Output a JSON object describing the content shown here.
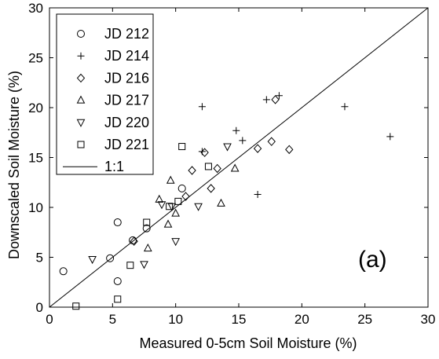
{
  "chart_data": {
    "type": "scatter",
    "title": "",
    "xlabel": "Measured 0-5cm Soil Moisture (%)",
    "ylabel": "Downscaled Soil Moisture (%)",
    "xlim": [
      0,
      30
    ],
    "ylim": [
      0,
      30
    ],
    "xticks": [
      "0",
      "5",
      "10",
      "15",
      "20",
      "25",
      "30"
    ],
    "yticks": [
      "0",
      "5",
      "10",
      "15",
      "20",
      "25",
      "30"
    ],
    "grid": false,
    "legend_position": "top-left",
    "annotation": "(a)",
    "series": [
      {
        "name": "JD 212",
        "marker": "circle",
        "points": [
          [
            1.1,
            3.6
          ],
          [
            4.8,
            4.9
          ],
          [
            5.4,
            2.6
          ],
          [
            5.4,
            8.5
          ],
          [
            6.6,
            6.7
          ],
          [
            7.7,
            7.9
          ],
          [
            10.5,
            11.9
          ]
        ]
      },
      {
        "name": "JD 214",
        "marker": "plus",
        "points": [
          [
            12.1,
            20.1
          ],
          [
            12.1,
            15.6
          ],
          [
            14.8,
            17.7
          ],
          [
            15.3,
            16.7
          ],
          [
            16.5,
            11.3
          ],
          [
            17.2,
            20.8
          ],
          [
            18.2,
            21.2
          ],
          [
            23.4,
            20.1
          ],
          [
            27.0,
            17.1
          ]
        ]
      },
      {
        "name": "JD 216",
        "marker": "diamond",
        "points": [
          [
            6.7,
            6.6
          ],
          [
            10.8,
            11.1
          ],
          [
            11.3,
            13.7
          ],
          [
            12.3,
            15.5
          ],
          [
            12.8,
            11.9
          ],
          [
            13.3,
            13.9
          ],
          [
            16.5,
            15.9
          ],
          [
            17.6,
            16.6
          ],
          [
            17.9,
            20.8
          ],
          [
            19.0,
            15.8
          ]
        ]
      },
      {
        "name": "JD 217",
        "marker": "triangle-up",
        "points": [
          [
            7.8,
            5.9
          ],
          [
            8.7,
            10.8
          ],
          [
            9.4,
            8.3
          ],
          [
            9.6,
            12.7
          ],
          [
            10.0,
            9.4
          ],
          [
            13.6,
            10.4
          ],
          [
            14.7,
            13.9
          ]
        ]
      },
      {
        "name": "JD 220",
        "marker": "triangle-down",
        "points": [
          [
            3.4,
            4.8
          ],
          [
            7.5,
            4.3
          ],
          [
            8.9,
            10.3
          ],
          [
            9.7,
            10.1
          ],
          [
            10.0,
            6.6
          ],
          [
            11.8,
            10.1
          ],
          [
            14.1,
            16.1
          ]
        ]
      },
      {
        "name": "JD 221",
        "marker": "square",
        "points": [
          [
            2.1,
            0.1
          ],
          [
            5.4,
            0.8
          ],
          [
            6.4,
            4.2
          ],
          [
            7.7,
            8.5
          ],
          [
            9.5,
            10.1
          ],
          [
            10.2,
            10.6
          ],
          [
            10.5,
            16.1
          ],
          [
            12.6,
            14.1
          ]
        ]
      },
      {
        "name": "1:1",
        "marker": "line",
        "points": [
          [
            0,
            0
          ],
          [
            30,
            30
          ]
        ]
      }
    ]
  }
}
